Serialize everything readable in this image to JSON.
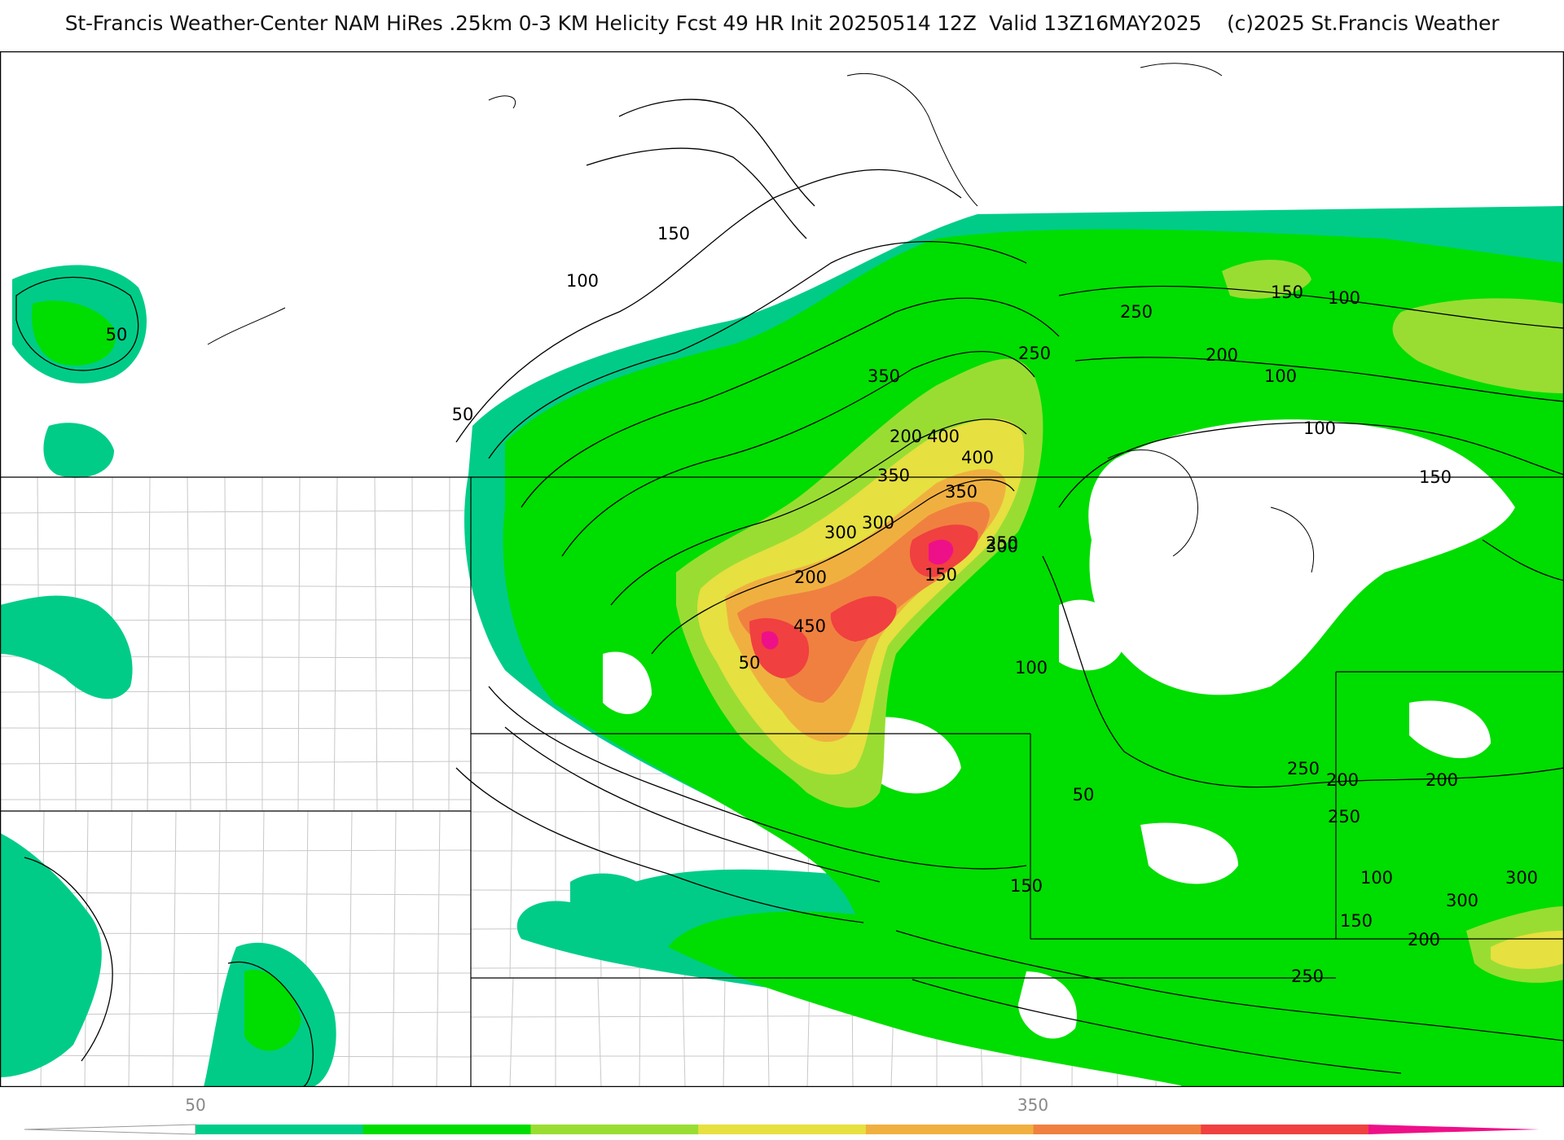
{
  "header": {
    "title": "St-Francis Weather-Center NAM HiRes .25km 0-3 KM Helicity Fcst 49 HR Init 20250514 12Z  Valid 13Z16MAY2025    (c)2025 St.Francis Weather"
  },
  "colors": {
    "c50": "#00cc88",
    "c100": "#00dd00",
    "c150": "#99dd33",
    "c200": "#e6e040",
    "c250": "#f0b040",
    "c300": "#f08040",
    "c350": "#f04040",
    "c400": "#ee1088",
    "boundary": "#000000",
    "counties": "#bbbbbb"
  },
  "colorbar": {
    "labels": [
      "50",
      "350"
    ]
  },
  "contour_labels": [
    "50",
    "100",
    "150",
    "200",
    "250",
    "300",
    "350",
    "400",
    "450",
    "50",
    "100",
    "150",
    "200",
    "250",
    "300",
    "350",
    "400",
    "100",
    "150",
    "200",
    "250",
    "300",
    "350",
    "50",
    "100",
    "150",
    "200",
    "250",
    "300",
    "50",
    "100",
    "150",
    "200",
    "250",
    "100",
    "150",
    "200",
    "250",
    "300"
  ]
}
